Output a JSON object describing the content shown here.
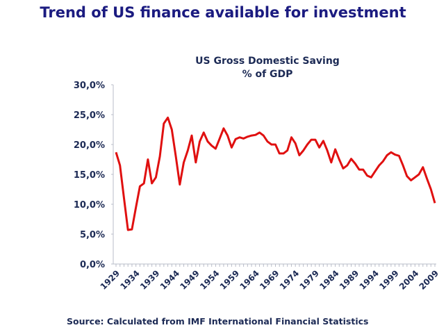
{
  "page_title": "Trend of US finance available for investment",
  "source": "Source: Calculated from IMF International Financial Statistics",
  "chart_data": {
    "type": "line",
    "title": [
      "US Gross Domestic Saving",
      "% of GDP"
    ],
    "xlabel": "",
    "ylabel": "",
    "ylim": [
      0,
      30
    ],
    "yticks": [
      "0,0%",
      "5,0%",
      "10,0%",
      "15,0%",
      "20,0%",
      "25,0%",
      "30,0%"
    ],
    "xticks": [
      "1929",
      "1934",
      "1939",
      "1944",
      "1949",
      "1954",
      "1959",
      "1964",
      "1969",
      "1974",
      "1979",
      "1984",
      "1989",
      "1994",
      "1999",
      "2004",
      "2009"
    ],
    "x_start": 1929,
    "x_end": 2009,
    "line_color": "#e01010",
    "series": [
      {
        "name": "US Gross Domestic Saving (% of GDP)",
        "values": [
          18.7,
          16.5,
          11,
          5.7,
          5.8,
          9.5,
          13,
          13.5,
          17.5,
          13.5,
          14.5,
          18,
          23.5,
          24.5,
          22.5,
          18,
          13.3,
          17,
          19,
          21.5,
          17,
          20.5,
          22,
          20.5,
          19.8,
          19.3,
          21,
          22.7,
          21.5,
          19.5,
          20.9,
          21.2,
          21,
          21.3,
          21.5,
          21.6,
          22,
          21.5,
          20.5,
          20,
          20,
          18.5,
          18.5,
          19,
          21.2,
          20.2,
          18.2,
          19,
          20,
          20.8,
          20.8,
          19.5,
          20.6,
          19,
          17,
          19.2,
          17.5,
          16,
          16.5,
          17.6,
          16.8,
          15.8,
          15.8,
          14.8,
          14.5,
          15.5,
          16.5,
          17.2,
          18.2,
          18.7,
          18.3,
          18.1,
          16.5,
          14.7,
          14,
          14.5,
          15,
          16.2,
          14.3,
          12.5,
          10.2
        ]
      }
    ]
  }
}
